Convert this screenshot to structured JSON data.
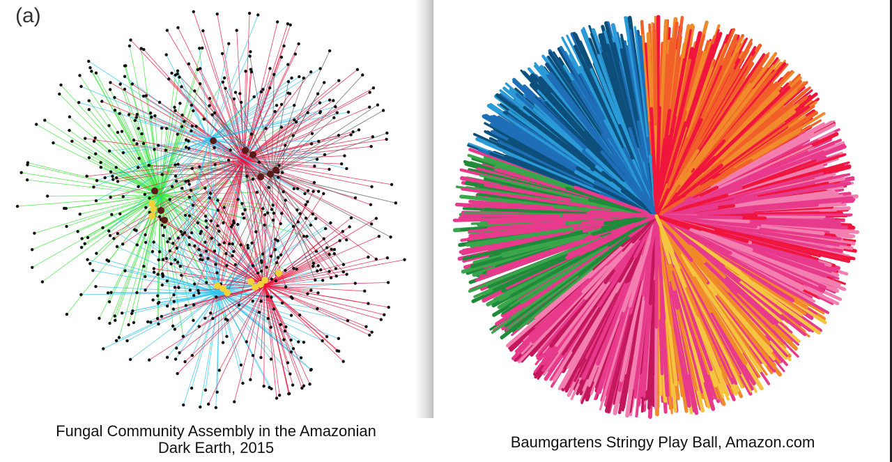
{
  "left": {
    "panel_letter": "(a)",
    "caption_line1": "Fungal Community Assembly in the Amazonian",
    "caption_line2": "Dark Earth, 2015",
    "network_colors": {
      "green": "#3be53b",
      "blue": "#2ec4ef",
      "red": "#f0123c",
      "gray": "#555555",
      "node": "#111111",
      "hub": "#5a1a1a",
      "highlight": "#f2d23a"
    }
  },
  "right": {
    "caption": "Baumgartens Stringy Play Ball, Amazon.com",
    "ball_colors": [
      "#1f6fb8",
      "#2a9bd6",
      "#f2602a",
      "#f0153c",
      "#e83a8c",
      "#f27fb0",
      "#1e8a3a",
      "#3aa54a",
      "#f5c542",
      "#f08a2a",
      "#c2185b",
      "#0d4f7a"
    ]
  }
}
